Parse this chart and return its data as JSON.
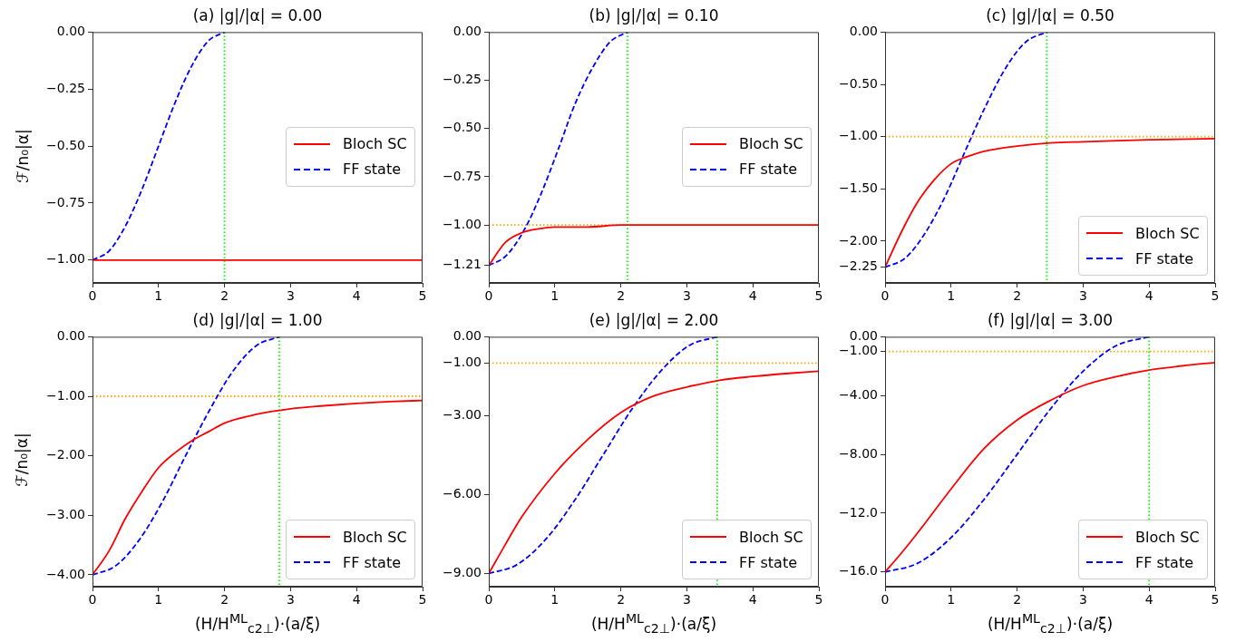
{
  "chart_data": [
    {
      "type": "line",
      "title": "(a) |g|/|α| = 0.00",
      "ylabel": "ℱ/n₀|α|",
      "xlim": [
        0,
        5
      ],
      "xticks": [
        0,
        1,
        2,
        3,
        4,
        5
      ],
      "ylim": [
        -1.1,
        0
      ],
      "yticks": [
        {
          "value": 0,
          "label": "0.00"
        },
        {
          "value": -0.25,
          "label": "−0.25"
        },
        {
          "value": -0.5,
          "label": "−0.50"
        },
        {
          "value": -0.75,
          "label": "−0.75"
        },
        {
          "value": -1,
          "label": "−1.00"
        }
      ],
      "legend": "center right",
      "series": [
        {
          "name": "Bloch SC",
          "color": "#ff0000",
          "line_style": "solid",
          "x": [
            0,
            1,
            2,
            3,
            4,
            5
          ],
          "values": [
            -1,
            -1,
            -1,
            -1,
            -1,
            -1
          ]
        },
        {
          "name": "FF state",
          "color": "#0000ff",
          "line_style": "dashed",
          "x": [
            0,
            0.25,
            0.5,
            0.75,
            1,
            1.25,
            1.5,
            1.75,
            2
          ],
          "values": [
            -1,
            -0.96,
            -0.85,
            -0.69,
            -0.5,
            -0.31,
            -0.15,
            -0.04,
            0
          ]
        }
      ],
      "ref_lines": [
        {
          "axis": "x",
          "value": 2,
          "color": "#00ff00",
          "line_style": "dotted"
        }
      ]
    },
    {
      "type": "line",
      "title": "(b) |g|/|α| = 0.10",
      "xlim": [
        0,
        5
      ],
      "xticks": [
        0,
        1,
        2,
        3,
        4,
        5
      ],
      "ylim": [
        -1.3,
        0
      ],
      "yticks": [
        {
          "value": 0,
          "label": "0.00"
        },
        {
          "value": -0.25,
          "label": "−0.25"
        },
        {
          "value": -0.5,
          "label": "−0.50"
        },
        {
          "value": -0.75,
          "label": "−0.75"
        },
        {
          "value": -1,
          "label": "−1.00"
        },
        {
          "value": -1.21,
          "label": "−1.21"
        }
      ],
      "legend": "center right",
      "series": [
        {
          "name": "Bloch SC",
          "color": "#ff0000",
          "line_style": "solid",
          "x": [
            0,
            0.25,
            0.5,
            0.75,
            1,
            1.5,
            2,
            3,
            4,
            5
          ],
          "values": [
            -1.21,
            -1.09,
            -1.04,
            -1.02,
            -1.01,
            -1.01,
            -1,
            -1,
            -1,
            -1
          ]
        },
        {
          "name": "FF state",
          "color": "#0000ff",
          "line_style": "dashed",
          "x": [
            0,
            0.26,
            0.53,
            0.79,
            1.05,
            1.31,
            1.58,
            1.84,
            2.1
          ],
          "values": [
            -1.21,
            -1.16,
            -1.03,
            -0.84,
            -0.61,
            -0.37,
            -0.18,
            -0.05,
            0
          ]
        }
      ],
      "ref_lines": [
        {
          "axis": "x",
          "value": 2.1,
          "color": "#00ff00",
          "line_style": "dotted"
        },
        {
          "axis": "y",
          "value": -1,
          "color": "#ffa500",
          "line_style": "dotted"
        }
      ]
    },
    {
      "type": "line",
      "title": "(c) |g|/|α| = 0.50",
      "xlim": [
        0,
        5
      ],
      "xticks": [
        0,
        1,
        2,
        3,
        4,
        5
      ],
      "ylim": [
        -2.4,
        0
      ],
      "yticks": [
        {
          "value": 0,
          "label": "0.00"
        },
        {
          "value": -0.5,
          "label": "−0.50"
        },
        {
          "value": -1,
          "label": "−1.00"
        },
        {
          "value": -1.5,
          "label": "−1.50"
        },
        {
          "value": -2,
          "label": "−2.00"
        },
        {
          "value": -2.25,
          "label": "−2.25"
        }
      ],
      "legend": "bottom right",
      "series": [
        {
          "name": "Bloch SC",
          "color": "#ff0000",
          "line_style": "solid",
          "x": [
            0,
            0.25,
            0.5,
            0.75,
            1,
            1.25,
            1.5,
            2,
            2.5,
            3,
            4,
            5
          ],
          "values": [
            -2.25,
            -1.91,
            -1.62,
            -1.41,
            -1.26,
            -1.19,
            -1.14,
            -1.09,
            -1.06,
            -1.05,
            -1.03,
            -1.02
          ]
        },
        {
          "name": "FF state",
          "color": "#0000ff",
          "line_style": "dashed",
          "x": [
            0,
            0.31,
            0.61,
            0.92,
            1.22,
            1.53,
            1.84,
            2.14,
            2.45
          ],
          "values": [
            -2.25,
            -2.16,
            -1.92,
            -1.56,
            -1.13,
            -0.7,
            -0.33,
            -0.09,
            0
          ]
        }
      ],
      "ref_lines": [
        {
          "axis": "x",
          "value": 2.45,
          "color": "#00ff00",
          "line_style": "dotted"
        },
        {
          "axis": "y",
          "value": -1,
          "color": "#ffa500",
          "line_style": "dotted"
        }
      ]
    },
    {
      "type": "line",
      "title": "(d) |g|/|α| = 1.00",
      "xlabel": "(H/H$^{ML}$$_{c2⊥}$)·(a/ξ)",
      "ylabel": "ℱ/n₀|α|",
      "xlim": [
        0,
        5
      ],
      "xticks": [
        0,
        1,
        2,
        3,
        4,
        5
      ],
      "ylim": [
        -4.2,
        0
      ],
      "yticks": [
        {
          "value": 0,
          "label": "0.00"
        },
        {
          "value": -1,
          "label": "−1.00"
        },
        {
          "value": -2,
          "label": "−2.00"
        },
        {
          "value": -3,
          "label": "−3.00"
        },
        {
          "value": -4,
          "label": "−4.00"
        }
      ],
      "legend": "bottom right",
      "series": [
        {
          "name": "Bloch SC",
          "color": "#ff0000",
          "line_style": "solid",
          "x": [
            0,
            0.25,
            0.5,
            0.75,
            1,
            1.25,
            1.5,
            1.75,
            2,
            2.5,
            3,
            3.5,
            4,
            4.5,
            5
          ],
          "values": [
            -4,
            -3.6,
            -3.05,
            -2.6,
            -2.2,
            -1.95,
            -1.75,
            -1.6,
            -1.45,
            -1.3,
            -1.21,
            -1.16,
            -1.12,
            -1.09,
            -1.07
          ]
        },
        {
          "name": "FF state",
          "color": "#0000ff",
          "line_style": "dashed",
          "x": [
            0,
            0.35,
            0.71,
            1.06,
            1.41,
            1.77,
            2.12,
            2.48,
            2.83
          ],
          "values": [
            -4,
            -3.85,
            -3.41,
            -2.77,
            -2,
            -1.24,
            -0.59,
            -0.15,
            0
          ]
        }
      ],
      "ref_lines": [
        {
          "axis": "x",
          "value": 2.83,
          "color": "#00ff00",
          "line_style": "dotted"
        },
        {
          "axis": "y",
          "value": -1,
          "color": "#ffa500",
          "line_style": "dotted"
        }
      ]
    },
    {
      "type": "line",
      "title": "(e) |g|/|α| = 2.00",
      "xlabel": "(H/H$^{ML}$$_{c2⊥}$)·(a/ξ)",
      "xlim": [
        0,
        5
      ],
      "xticks": [
        0,
        1,
        2,
        3,
        4,
        5
      ],
      "ylim": [
        -9.5,
        0
      ],
      "yticks": [
        {
          "value": 0,
          "label": "0.00"
        },
        {
          "value": -1,
          "label": "−1.00"
        },
        {
          "value": -3,
          "label": "−3.00"
        },
        {
          "value": -6,
          "label": "−6.00"
        },
        {
          "value": -9,
          "label": "−9.00"
        }
      ],
      "legend": "bottom right",
      "series": [
        {
          "name": "Bloch SC",
          "color": "#ff0000",
          "line_style": "solid",
          "x": [
            0,
            0.25,
            0.5,
            1,
            1.5,
            2,
            2.5,
            3,
            3.5,
            4,
            4.5,
            5
          ],
          "values": [
            -9,
            -7.9,
            -6.85,
            -5.2,
            -3.9,
            -2.88,
            -2.25,
            -1.91,
            -1.65,
            -1.51,
            -1.4,
            -1.31
          ]
        },
        {
          "name": "FF state",
          "color": "#0000ff",
          "line_style": "dashed",
          "x": [
            0,
            0.43,
            0.87,
            1.3,
            1.73,
            2.16,
            2.6,
            3.03,
            3.46
          ],
          "values": [
            -9,
            -8.66,
            -7.68,
            -6.22,
            -4.5,
            -2.78,
            -1.32,
            -0.34,
            0
          ]
        }
      ],
      "ref_lines": [
        {
          "axis": "x",
          "value": 3.46,
          "color": "#00ff00",
          "line_style": "dotted"
        },
        {
          "axis": "y",
          "value": -1,
          "color": "#ffa500",
          "line_style": "dotted"
        }
      ]
    },
    {
      "type": "line",
      "title": "(f) |g|/|α| = 3.00",
      "xlabel": "(H/H$^{ML}$$_{c2⊥}$)·(a/ξ)",
      "xlim": [
        0,
        5
      ],
      "xticks": [
        0,
        1,
        2,
        3,
        4,
        5
      ],
      "ylim": [
        -17,
        0
      ],
      "yticks": [
        {
          "value": 0,
          "label": "0.00"
        },
        {
          "value": -1,
          "label": "−1.00"
        },
        {
          "value": -4,
          "label": "−4.00"
        },
        {
          "value": -8,
          "label": "−8.00"
        },
        {
          "value": -12,
          "label": "−12.0"
        },
        {
          "value": -16,
          "label": "−16.0"
        }
      ],
      "legend": "bottom right",
      "series": [
        {
          "name": "Bloch SC",
          "color": "#ff0000",
          "line_style": "solid",
          "x": [
            0,
            0.25,
            0.5,
            1,
            1.5,
            2,
            2.5,
            3,
            3.5,
            4,
            4.5,
            5
          ],
          "values": [
            -16,
            -14.7,
            -13.3,
            -10.35,
            -7.6,
            -5.66,
            -4.34,
            -3.32,
            -2.71,
            -2.26,
            -1.98,
            -1.75
          ]
        },
        {
          "name": "FF state",
          "color": "#0000ff",
          "line_style": "dashed",
          "x": [
            0,
            0.5,
            1,
            1.5,
            2,
            2.5,
            3,
            3.5,
            4
          ],
          "values": [
            -16,
            -15.39,
            -13.66,
            -11.06,
            -8,
            -4.94,
            -2.34,
            -0.61,
            0
          ]
        }
      ],
      "ref_lines": [
        {
          "axis": "x",
          "value": 4,
          "color": "#00ff00",
          "line_style": "dotted"
        },
        {
          "axis": "y",
          "value": -1,
          "color": "#ffa500",
          "line_style": "dotted"
        }
      ]
    }
  ]
}
